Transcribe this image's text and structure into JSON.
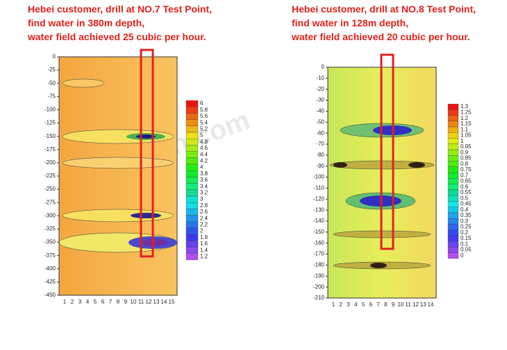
{
  "watermark": "aidush.com",
  "panels": [
    {
      "caption": [
        "Hebei customer, drill at  NO.7 Test Point,",
        "find water in 380m depth,",
        "water field achieved 25 cubic per hour."
      ],
      "yticks": [
        0,
        -25,
        -50,
        -75,
        -100,
        -125,
        -150,
        -175,
        -200,
        -225,
        -250,
        -275,
        -300,
        -325,
        -350,
        -375,
        -400,
        -425,
        -450
      ],
      "xticks": [
        1,
        2,
        3,
        4,
        5,
        6,
        7,
        8,
        9,
        10,
        11,
        12,
        13,
        14,
        15
      ],
      "colorbar": [
        6,
        5.8,
        5.6,
        5.4,
        5.2,
        5,
        4.8,
        4.6,
        4.4,
        4.2,
        4,
        3.8,
        3.6,
        3.4,
        3.2,
        3,
        2.8,
        2.6,
        2.4,
        2.2,
        2,
        1.8,
        1.6,
        1.4,
        1.2
      ]
    },
    {
      "caption": [
        "Hebei customer, drill at  NO.8 Test Point,",
        "find water in 128m depth,",
        "water field achieved 20 cubic per hour."
      ],
      "yticks": [
        0,
        -10,
        -20,
        -30,
        -40,
        -50,
        -60,
        -70,
        -80,
        -90,
        -100,
        -110,
        -120,
        -130,
        -140,
        -150,
        -160,
        -170,
        -180,
        -190,
        -200,
        -210
      ],
      "xticks": [
        1,
        2,
        3,
        4,
        5,
        6,
        7,
        8,
        9,
        10,
        11,
        12,
        13,
        14
      ],
      "colorbar": [
        1.3,
        1.25,
        1.2,
        1.15,
        1.1,
        1.05,
        1,
        0.95,
        0.9,
        0.85,
        0.8,
        0.75,
        0.7,
        0.65,
        0.6,
        0.55,
        0.5,
        0.45,
        0.4,
        0.35,
        0.3,
        0.25,
        0.2,
        0.15,
        0.1,
        0.05,
        0
      ]
    }
  ]
}
